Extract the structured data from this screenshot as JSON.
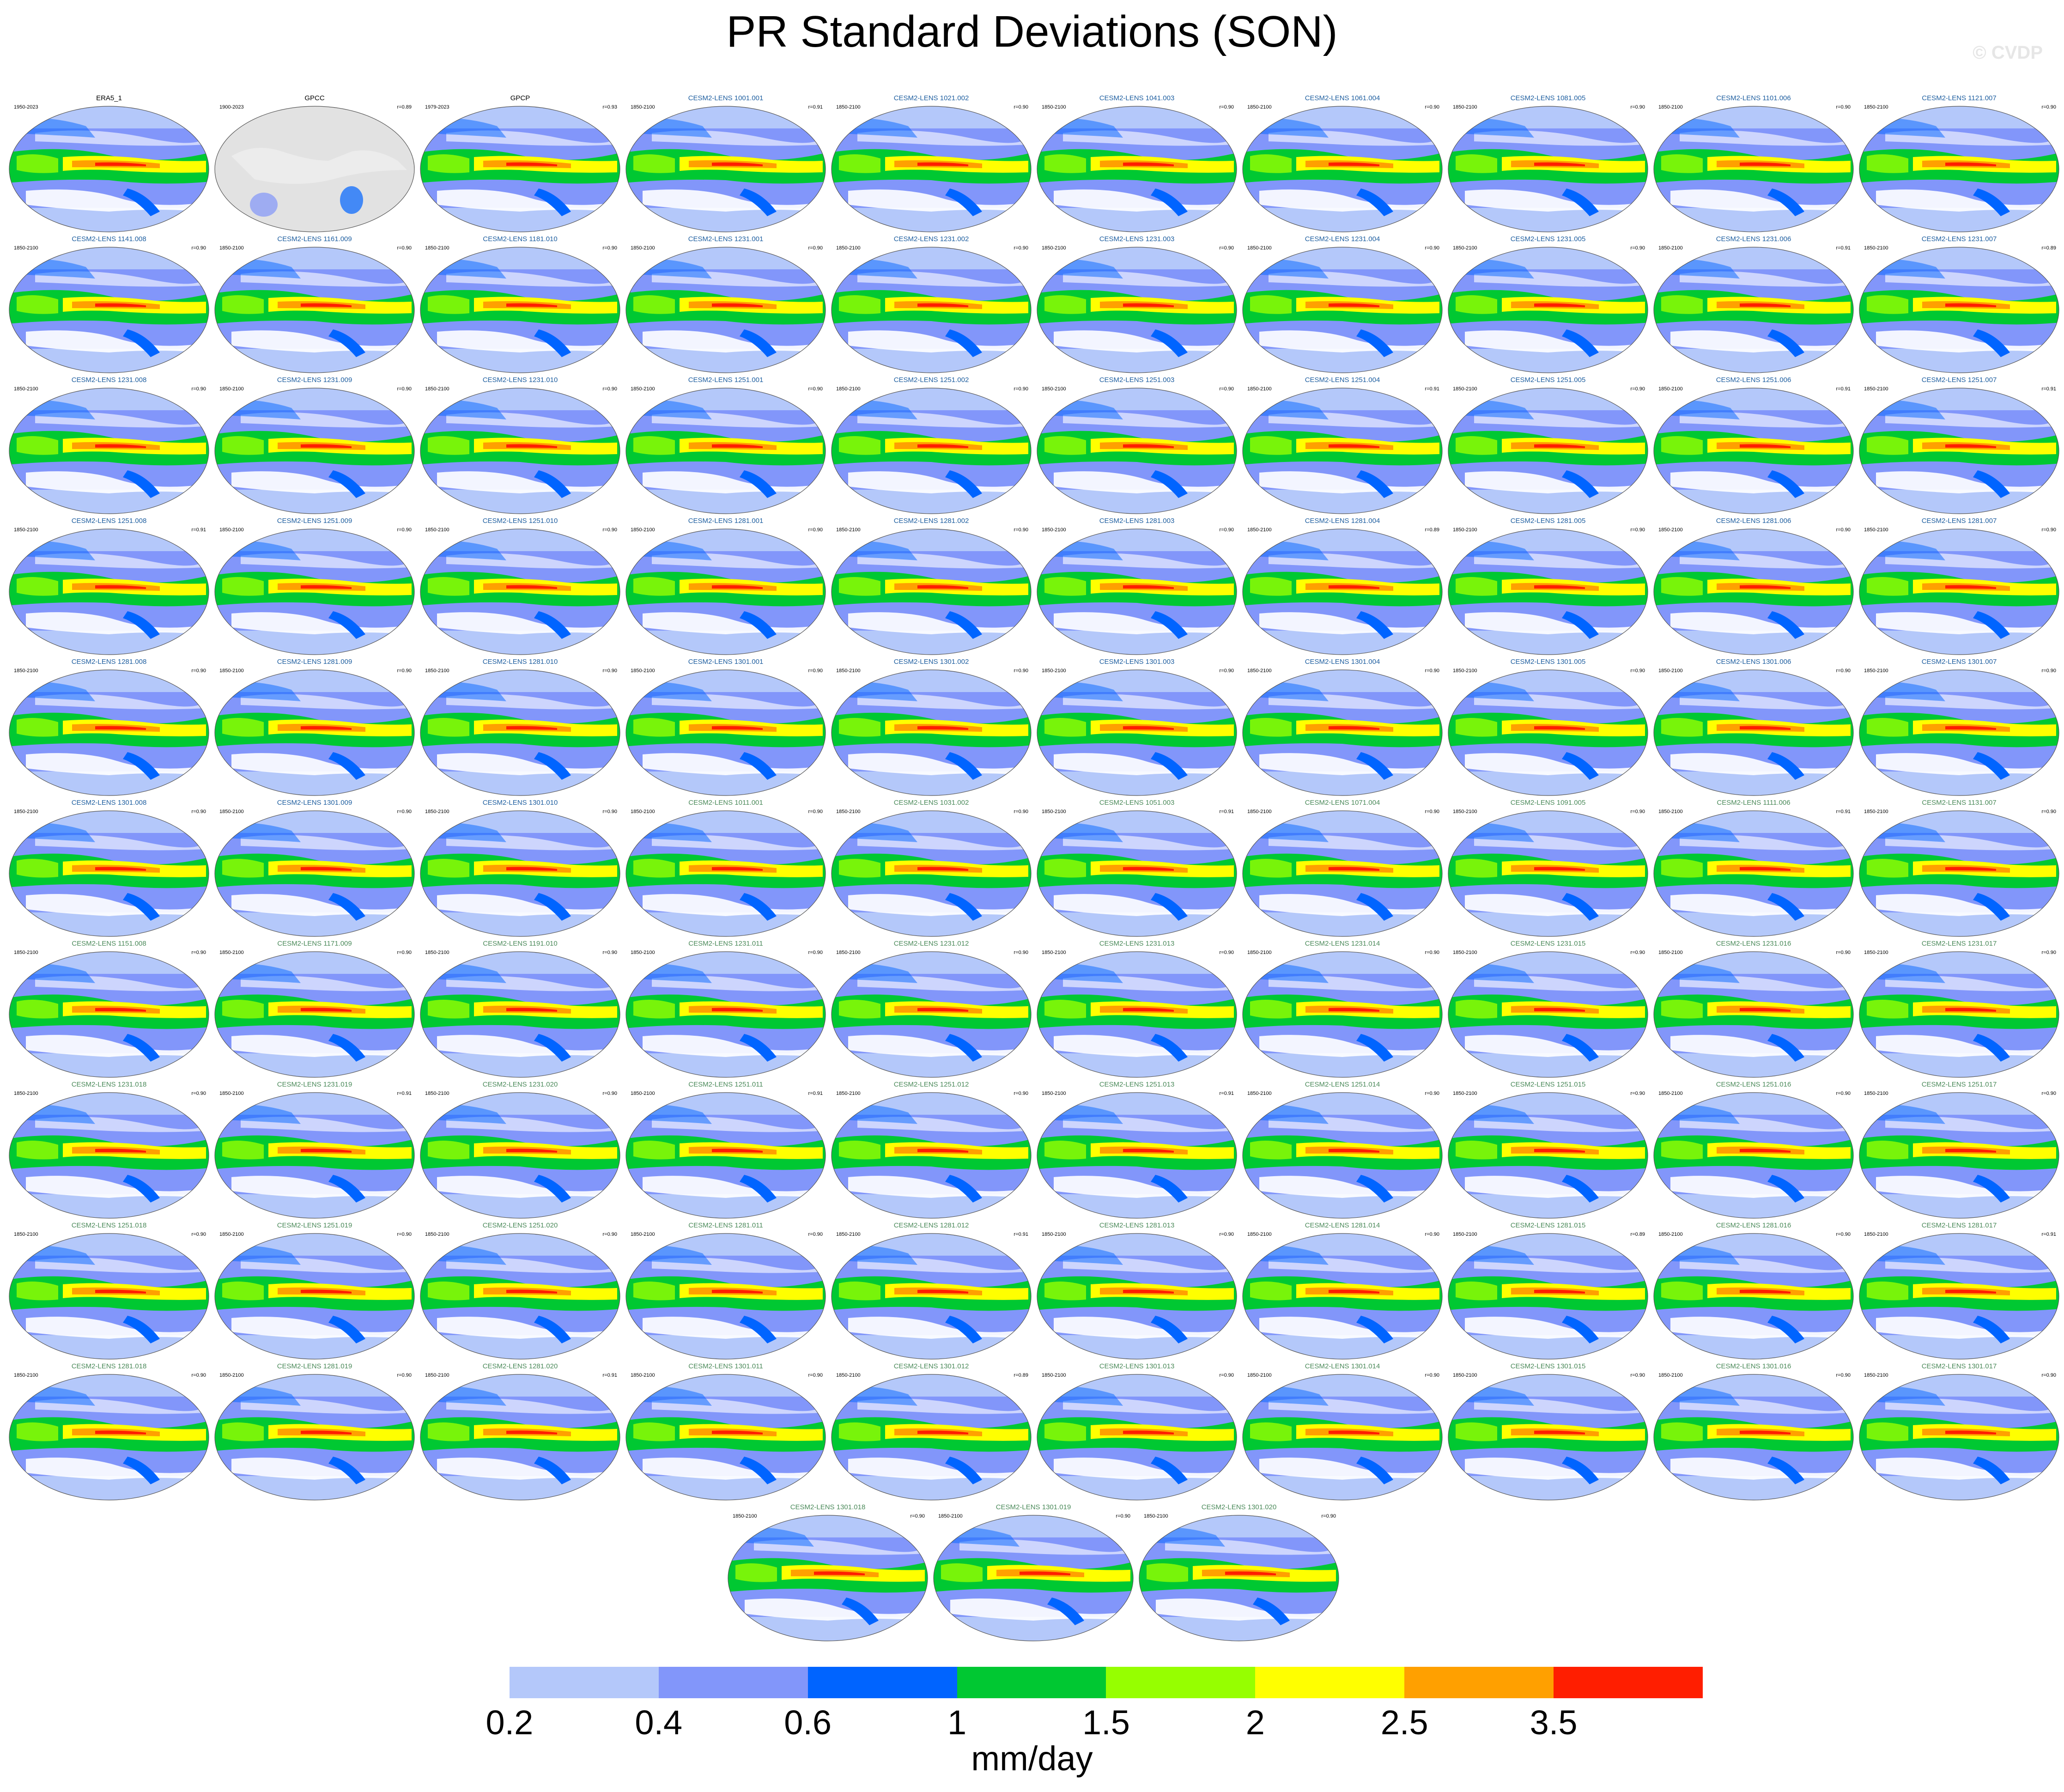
{
  "title": "PR Standard Deviations (SON)",
  "copyright": "© CVDP",
  "units": "mm/day",
  "colorbar": {
    "colors": [
      "#ffffff",
      "#b4c8fa",
      "#8296fa",
      "#0064ff",
      "#00c832",
      "#96ff00",
      "#ffff00",
      "#ffa000",
      "#ff1e00"
    ],
    "tick_labels": [
      "0.2",
      "0.4",
      "0.6",
      "1",
      "1.5",
      "2",
      "2.5",
      "3.5"
    ]
  },
  "panels": [
    {
      "title": "ERA5_1",
      "years": "1950-2023",
      "r": "",
      "kind": "obs"
    },
    {
      "title": "GPCC",
      "years": "1900-2023",
      "r": "r=0.89",
      "kind": "gpcc"
    },
    {
      "title": "GPCP",
      "years": "1979-2023",
      "r": "r=0.93",
      "kind": "obs"
    },
    {
      "title": "CESM2-LENS 1001.001",
      "years": "1850-2100",
      "r": "r=0.91",
      "kind": "blue"
    },
    {
      "title": "CESM2-LENS 1021.002",
      "years": "1850-2100",
      "r": "r=0.90",
      "kind": "blue"
    },
    {
      "title": "CESM2-LENS 1041.003",
      "years": "1850-2100",
      "r": "r=0.90",
      "kind": "blue"
    },
    {
      "title": "CESM2-LENS 1061.004",
      "years": "1850-2100",
      "r": "r=0.90",
      "kind": "blue"
    },
    {
      "title": "CESM2-LENS 1081.005",
      "years": "1850-2100",
      "r": "r=0.90",
      "kind": "blue"
    },
    {
      "title": "CESM2-LENS 1101.006",
      "years": "1850-2100",
      "r": "r=0.90",
      "kind": "blue"
    },
    {
      "title": "CESM2-LENS 1121.007",
      "years": "1850-2100",
      "r": "r=0.90",
      "kind": "blue"
    },
    {
      "title": "CESM2-LENS 1141.008",
      "years": "1850-2100",
      "r": "r=0.90",
      "kind": "blue"
    },
    {
      "title": "CESM2-LENS 1161.009",
      "years": "1850-2100",
      "r": "r=0.90",
      "kind": "blue"
    },
    {
      "title": "CESM2-LENS 1181.010",
      "years": "1850-2100",
      "r": "r=0.90",
      "kind": "blue"
    },
    {
      "title": "CESM2-LENS 1231.001",
      "years": "1850-2100",
      "r": "r=0.90",
      "kind": "blue"
    },
    {
      "title": "CESM2-LENS 1231.002",
      "years": "1850-2100",
      "r": "r=0.90",
      "kind": "blue"
    },
    {
      "title": "CESM2-LENS 1231.003",
      "years": "1850-2100",
      "r": "r=0.90",
      "kind": "blue"
    },
    {
      "title": "CESM2-LENS 1231.004",
      "years": "1850-2100",
      "r": "r=0.90",
      "kind": "blue"
    },
    {
      "title": "CESM2-LENS 1231.005",
      "years": "1850-2100",
      "r": "r=0.90",
      "kind": "blue"
    },
    {
      "title": "CESM2-LENS 1231.006",
      "years": "1850-2100",
      "r": "r=0.91",
      "kind": "blue"
    },
    {
      "title": "CESM2-LENS 1231.007",
      "years": "1850-2100",
      "r": "r=0.89",
      "kind": "blue"
    },
    {
      "title": "CESM2-LENS 1231.008",
      "years": "1850-2100",
      "r": "r=0.90",
      "kind": "blue"
    },
    {
      "title": "CESM2-LENS 1231.009",
      "years": "1850-2100",
      "r": "r=0.90",
      "kind": "blue"
    },
    {
      "title": "CESM2-LENS 1231.010",
      "years": "1850-2100",
      "r": "r=0.90",
      "kind": "blue"
    },
    {
      "title": "CESM2-LENS 1251.001",
      "years": "1850-2100",
      "r": "r=0.90",
      "kind": "blue"
    },
    {
      "title": "CESM2-LENS 1251.002",
      "years": "1850-2100",
      "r": "r=0.90",
      "kind": "blue"
    },
    {
      "title": "CESM2-LENS 1251.003",
      "years": "1850-2100",
      "r": "r=0.90",
      "kind": "blue"
    },
    {
      "title": "CESM2-LENS 1251.004",
      "years": "1850-2100",
      "r": "r=0.91",
      "kind": "blue"
    },
    {
      "title": "CESM2-LENS 1251.005",
      "years": "1850-2100",
      "r": "r=0.90",
      "kind": "blue"
    },
    {
      "title": "CESM2-LENS 1251.006",
      "years": "1850-2100",
      "r": "r=0.91",
      "kind": "blue"
    },
    {
      "title": "CESM2-LENS 1251.007",
      "years": "1850-2100",
      "r": "r=0.91",
      "kind": "blue"
    },
    {
      "title": "CESM2-LENS 1251.008",
      "years": "1850-2100",
      "r": "r=0.91",
      "kind": "blue"
    },
    {
      "title": "CESM2-LENS 1251.009",
      "years": "1850-2100",
      "r": "r=0.90",
      "kind": "blue"
    },
    {
      "title": "CESM2-LENS 1251.010",
      "years": "1850-2100",
      "r": "r=0.90",
      "kind": "blue"
    },
    {
      "title": "CESM2-LENS 1281.001",
      "years": "1850-2100",
      "r": "r=0.90",
      "kind": "blue"
    },
    {
      "title": "CESM2-LENS 1281.002",
      "years": "1850-2100",
      "r": "r=0.90",
      "kind": "blue"
    },
    {
      "title": "CESM2-LENS 1281.003",
      "years": "1850-2100",
      "r": "r=0.90",
      "kind": "blue"
    },
    {
      "title": "CESM2-LENS 1281.004",
      "years": "1850-2100",
      "r": "r=0.89",
      "kind": "blue"
    },
    {
      "title": "CESM2-LENS 1281.005",
      "years": "1850-2100",
      "r": "r=0.90",
      "kind": "blue"
    },
    {
      "title": "CESM2-LENS 1281.006",
      "years": "1850-2100",
      "r": "r=0.90",
      "kind": "blue"
    },
    {
      "title": "CESM2-LENS 1281.007",
      "years": "1850-2100",
      "r": "r=0.90",
      "kind": "blue"
    },
    {
      "title": "CESM2-LENS 1281.008",
      "years": "1850-2100",
      "r": "r=0.90",
      "kind": "blue"
    },
    {
      "title": "CESM2-LENS 1281.009",
      "years": "1850-2100",
      "r": "r=0.90",
      "kind": "blue"
    },
    {
      "title": "CESM2-LENS 1281.010",
      "years": "1850-2100",
      "r": "r=0.90",
      "kind": "blue"
    },
    {
      "title": "CESM2-LENS 1301.001",
      "years": "1850-2100",
      "r": "r=0.90",
      "kind": "blue"
    },
    {
      "title": "CESM2-LENS 1301.002",
      "years": "1850-2100",
      "r": "r=0.90",
      "kind": "blue"
    },
    {
      "title": "CESM2-LENS 1301.003",
      "years": "1850-2100",
      "r": "r=0.90",
      "kind": "blue"
    },
    {
      "title": "CESM2-LENS 1301.004",
      "years": "1850-2100",
      "r": "r=0.90",
      "kind": "blue"
    },
    {
      "title": "CESM2-LENS 1301.005",
      "years": "1850-2100",
      "r": "r=0.90",
      "kind": "blue"
    },
    {
      "title": "CESM2-LENS 1301.006",
      "years": "1850-2100",
      "r": "r=0.90",
      "kind": "blue"
    },
    {
      "title": "CESM2-LENS 1301.007",
      "years": "1850-2100",
      "r": "r=0.90",
      "kind": "blue"
    },
    {
      "title": "CESM2-LENS 1301.008",
      "years": "1850-2100",
      "r": "r=0.90",
      "kind": "blue"
    },
    {
      "title": "CESM2-LENS 1301.009",
      "years": "1850-2100",
      "r": "r=0.90",
      "kind": "blue"
    },
    {
      "title": "CESM2-LENS 1301.010",
      "years": "1850-2100",
      "r": "r=0.90",
      "kind": "blue"
    },
    {
      "title": "CESM2-LENS 1011.001",
      "years": "1850-2100",
      "r": "r=0.90",
      "kind": "green"
    },
    {
      "title": "CESM2-LENS 1031.002",
      "years": "1850-2100",
      "r": "r=0.90",
      "kind": "green"
    },
    {
      "title": "CESM2-LENS 1051.003",
      "years": "1850-2100",
      "r": "r=0.91",
      "kind": "green"
    },
    {
      "title": "CESM2-LENS 1071.004",
      "years": "1850-2100",
      "r": "r=0.90",
      "kind": "green"
    },
    {
      "title": "CESM2-LENS 1091.005",
      "years": "1850-2100",
      "r": "r=0.90",
      "kind": "green"
    },
    {
      "title": "CESM2-LENS 1111.006",
      "years": "1850-2100",
      "r": "r=0.91",
      "kind": "green"
    },
    {
      "title": "CESM2-LENS 1131.007",
      "years": "1850-2100",
      "r": "r=0.90",
      "kind": "green"
    },
    {
      "title": "CESM2-LENS 1151.008",
      "years": "1850-2100",
      "r": "r=0.90",
      "kind": "green"
    },
    {
      "title": "CESM2-LENS 1171.009",
      "years": "1850-2100",
      "r": "r=0.90",
      "kind": "green"
    },
    {
      "title": "CESM2-LENS 1191.010",
      "years": "1850-2100",
      "r": "r=0.90",
      "kind": "green"
    },
    {
      "title": "CESM2-LENS 1231.011",
      "years": "1850-2100",
      "r": "r=0.90",
      "kind": "green"
    },
    {
      "title": "CESM2-LENS 1231.012",
      "years": "1850-2100",
      "r": "r=0.90",
      "kind": "green"
    },
    {
      "title": "CESM2-LENS 1231.013",
      "years": "1850-2100",
      "r": "r=0.90",
      "kind": "green"
    },
    {
      "title": "CESM2-LENS 1231.014",
      "years": "1850-2100",
      "r": "r=0.90",
      "kind": "green"
    },
    {
      "title": "CESM2-LENS 1231.015",
      "years": "1850-2100",
      "r": "r=0.90",
      "kind": "green"
    },
    {
      "title": "CESM2-LENS 1231.016",
      "years": "1850-2100",
      "r": "r=0.90",
      "kind": "green"
    },
    {
      "title": "CESM2-LENS 1231.017",
      "years": "1850-2100",
      "r": "r=0.90",
      "kind": "green"
    },
    {
      "title": "CESM2-LENS 1231.018",
      "years": "1850-2100",
      "r": "r=0.90",
      "kind": "green"
    },
    {
      "title": "CESM2-LENS 1231.019",
      "years": "1850-2100",
      "r": "r=0.91",
      "kind": "green"
    },
    {
      "title": "CESM2-LENS 1231.020",
      "years": "1850-2100",
      "r": "r=0.90",
      "kind": "green"
    },
    {
      "title": "CESM2-LENS 1251.011",
      "years": "1850-2100",
      "r": "r=0.91",
      "kind": "green"
    },
    {
      "title": "CESM2-LENS 1251.012",
      "years": "1850-2100",
      "r": "r=0.90",
      "kind": "green"
    },
    {
      "title": "CESM2-LENS 1251.013",
      "years": "1850-2100",
      "r": "r=0.91",
      "kind": "green"
    },
    {
      "title": "CESM2-LENS 1251.014",
      "years": "1850-2100",
      "r": "r=0.90",
      "kind": "green"
    },
    {
      "title": "CESM2-LENS 1251.015",
      "years": "1850-2100",
      "r": "r=0.90",
      "kind": "green"
    },
    {
      "title": "CESM2-LENS 1251.016",
      "years": "1850-2100",
      "r": "r=0.90",
      "kind": "green"
    },
    {
      "title": "CESM2-LENS 1251.017",
      "years": "1850-2100",
      "r": "r=0.90",
      "kind": "green"
    },
    {
      "title": "CESM2-LENS 1251.018",
      "years": "1850-2100",
      "r": "r=0.90",
      "kind": "green"
    },
    {
      "title": "CESM2-LENS 1251.019",
      "years": "1850-2100",
      "r": "r=0.90",
      "kind": "green"
    },
    {
      "title": "CESM2-LENS 1251.020",
      "years": "1850-2100",
      "r": "r=0.90",
      "kind": "green"
    },
    {
      "title": "CESM2-LENS 1281.011",
      "years": "1850-2100",
      "r": "r=0.90",
      "kind": "green"
    },
    {
      "title": "CESM2-LENS 1281.012",
      "years": "1850-2100",
      "r": "r=0.91",
      "kind": "green"
    },
    {
      "title": "CESM2-LENS 1281.013",
      "years": "1850-2100",
      "r": "r=0.90",
      "kind": "green"
    },
    {
      "title": "CESM2-LENS 1281.014",
      "years": "1850-2100",
      "r": "r=0.90",
      "kind": "green"
    },
    {
      "title": "CESM2-LENS 1281.015",
      "years": "1850-2100",
      "r": "r=0.89",
      "kind": "green"
    },
    {
      "title": "CESM2-LENS 1281.016",
      "years": "1850-2100",
      "r": "r=0.90",
      "kind": "green"
    },
    {
      "title": "CESM2-LENS 1281.017",
      "years": "1850-2100",
      "r": "r=0.91",
      "kind": "green"
    },
    {
      "title": "CESM2-LENS 1281.018",
      "years": "1850-2100",
      "r": "r=0.90",
      "kind": "green"
    },
    {
      "title": "CESM2-LENS 1281.019",
      "years": "1850-2100",
      "r": "r=0.90",
      "kind": "green"
    },
    {
      "title": "CESM2-LENS 1281.020",
      "years": "1850-2100",
      "r": "r=0.91",
      "kind": "green"
    },
    {
      "title": "CESM2-LENS 1301.011",
      "years": "1850-2100",
      "r": "r=0.90",
      "kind": "green"
    },
    {
      "title": "CESM2-LENS 1301.012",
      "years": "1850-2100",
      "r": "r=0.89",
      "kind": "green"
    },
    {
      "title": "CESM2-LENS 1301.013",
      "years": "1850-2100",
      "r": "r=0.90",
      "kind": "green"
    },
    {
      "title": "CESM2-LENS 1301.014",
      "years": "1850-2100",
      "r": "r=0.90",
      "kind": "green"
    },
    {
      "title": "CESM2-LENS 1301.015",
      "years": "1850-2100",
      "r": "r=0.90",
      "kind": "green"
    },
    {
      "title": "CESM2-LENS 1301.016",
      "years": "1850-2100",
      "r": "r=0.90",
      "kind": "green"
    },
    {
      "title": "CESM2-LENS 1301.017",
      "years": "1850-2100",
      "r": "r=0.90",
      "kind": "green"
    },
    {
      "title": "CESM2-LENS 1301.018",
      "years": "1850-2100",
      "r": "r=0.90",
      "kind": "green"
    },
    {
      "title": "CESM2-LENS 1301.019",
      "years": "1850-2100",
      "r": "r=0.90",
      "kind": "green"
    },
    {
      "title": "CESM2-LENS 1301.020",
      "years": "1850-2100",
      "r": "r=0.90",
      "kind": "green"
    }
  ]
}
